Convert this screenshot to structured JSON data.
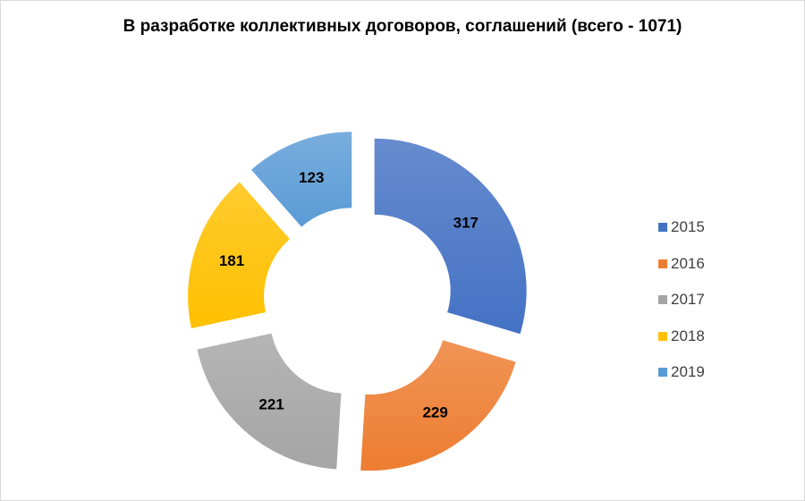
{
  "chart_data": {
    "type": "pie",
    "style": "exploded-doughnut",
    "title": "В разработке коллективных договоров, соглашений (всего - 1071)",
    "legend_position": "right",
    "categories": [
      "2015",
      "2016",
      "2017",
      "2018",
      "2019"
    ],
    "values": [
      317,
      229,
      221,
      181,
      123
    ],
    "colors": [
      "#4472C4",
      "#ED7D31",
      "#A5A5A5",
      "#FFC000",
      "#5B9BD5"
    ],
    "label_color": "#000000"
  }
}
